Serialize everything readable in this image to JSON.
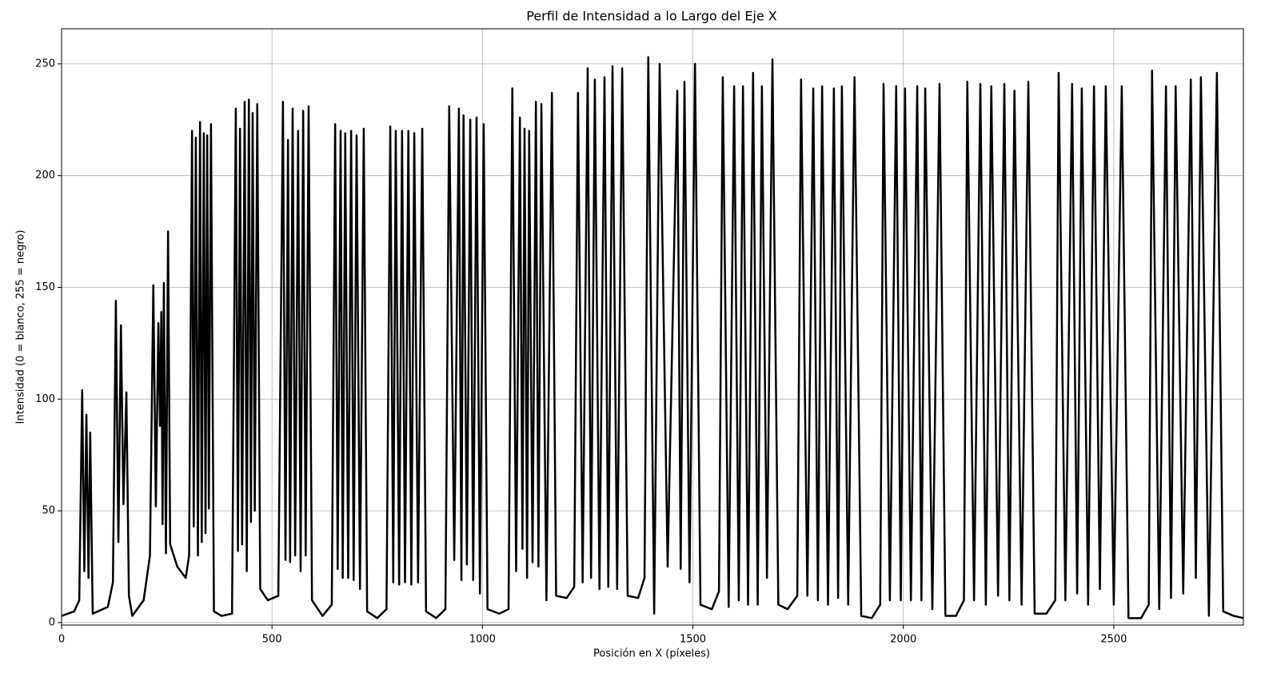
{
  "chart_data": {
    "type": "line",
    "title": "Perfil de Intensidad a lo Largo del Eje X",
    "x_label": "Posición en X (píxeles)",
    "y_label": "Intensidad (0 = blanco, 255 = negro)",
    "color": "#000000",
    "grid": true,
    "xlim": [
      0,
      2808
    ],
    "ylim": [
      -1.1,
      265.7
    ],
    "xticks": [
      0,
      500,
      1000,
      1500,
      2000,
      2500
    ],
    "yticks": [
      0,
      50,
      100,
      150,
      200,
      250
    ],
    "x": [
      0,
      30,
      42,
      49,
      54,
      59,
      64,
      68,
      74,
      110,
      122,
      129,
      135,
      141,
      147,
      154,
      160,
      168,
      195,
      210,
      218,
      224,
      230,
      234,
      237,
      240,
      243,
      248,
      253,
      258,
      275,
      295,
      303,
      310,
      314,
      319,
      324,
      329,
      333,
      338,
      342,
      346,
      350,
      355,
      362,
      380,
      405,
      414,
      419,
      424,
      429,
      435,
      440,
      445,
      450,
      454,
      459,
      465,
      472,
      490,
      515,
      526,
      532,
      538,
      543,
      549,
      555,
      562,
      568,
      574,
      580,
      587,
      595,
      620,
      642,
      650,
      656,
      663,
      668,
      674,
      681,
      688,
      694,
      701,
      709,
      718,
      726,
      750,
      772,
      781,
      788,
      794,
      802,
      809,
      816,
      824,
      831,
      838,
      847,
      857,
      866,
      890,
      912,
      921,
      933,
      944,
      950,
      955,
      963,
      971,
      978,
      986,
      994,
      1003,
      1012,
      1040,
      1062,
      1071,
      1080,
      1089,
      1095,
      1100,
      1106,
      1111,
      1119,
      1127,
      1133,
      1140,
      1152,
      1165,
      1175,
      1200,
      1218,
      1227,
      1238,
      1250,
      1258,
      1267,
      1278,
      1290,
      1299,
      1309,
      1320,
      1332,
      1345,
      1370,
      1385,
      1394,
      1408,
      1421,
      1440,
      1463,
      1471,
      1480,
      1492,
      1505,
      1518,
      1545,
      1562,
      1571,
      1585,
      1598,
      1609,
      1619,
      1631,
      1643,
      1654,
      1664,
      1676,
      1689,
      1703,
      1725,
      1748,
      1757,
      1772,
      1786,
      1797,
      1807,
      1821,
      1835,
      1845,
      1854,
      1869,
      1884,
      1900,
      1925,
      1945,
      1953,
      1968,
      1983,
      1994,
      2004,
      2018,
      2033,
      2043,
      2052,
      2069,
      2086,
      2100,
      2125,
      2144,
      2152,
      2168,
      2183,
      2196,
      2209,
      2225,
      2240,
      2252,
      2264,
      2281,
      2297,
      2312,
      2340,
      2361,
      2369,
      2385,
      2401,
      2413,
      2424,
      2439,
      2453,
      2467,
      2481,
      2500,
      2519,
      2535,
      2565,
      2583,
      2591,
      2608,
      2624,
      2636,
      2647,
      2665,
      2683,
      2695,
      2707,
      2726,
      2745,
      2760,
      2785,
      2808
    ],
    "values": [
      3,
      5,
      10,
      104,
      23,
      93,
      20,
      85,
      4,
      7,
      18,
      144,
      36,
      133,
      53,
      103,
      12,
      3,
      10,
      30,
      151,
      52,
      134,
      88,
      139,
      44,
      152,
      31,
      175,
      35,
      25,
      20,
      30,
      220,
      43,
      217,
      30,
      224,
      36,
      219,
      40,
      218,
      51,
      223,
      5,
      3,
      4,
      230,
      32,
      221,
      35,
      233,
      23,
      234,
      45,
      228,
      50,
      232,
      15,
      10,
      12,
      233,
      28,
      216,
      27,
      230,
      30,
      220,
      23,
      229,
      30,
      231,
      10,
      3,
      8,
      223,
      24,
      220,
      20,
      219,
      20,
      220,
      19,
      218,
      15,
      221,
      5,
      2,
      6,
      222,
      18,
      220,
      17,
      220,
      18,
      220,
      17,
      219,
      18,
      221,
      5,
      2,
      6,
      231,
      28,
      230,
      19,
      227,
      26,
      225,
      19,
      226,
      13,
      223,
      6,
      4,
      6,
      239,
      23,
      226,
      33,
      221,
      20,
      220,
      27,
      233,
      25,
      232,
      10,
      237,
      12,
      11,
      16,
      237,
      18,
      248,
      20,
      243,
      15,
      244,
      16,
      249,
      15,
      248,
      12,
      11,
      20,
      253,
      4,
      250,
      25,
      238,
      24,
      242,
      18,
      250,
      8,
      6,
      14,
      244,
      7,
      240,
      10,
      240,
      8,
      246,
      8,
      240,
      20,
      252,
      8,
      6,
      12,
      243,
      12,
      239,
      10,
      240,
      8,
      239,
      11,
      240,
      8,
      244,
      3,
      2,
      8,
      241,
      10,
      240,
      10,
      239,
      10,
      240,
      10,
      239,
      6,
      241,
      3,
      3,
      10,
      242,
      10,
      241,
      8,
      240,
      12,
      241,
      10,
      238,
      8,
      242,
      4,
      4,
      10,
      246,
      10,
      241,
      13,
      239,
      8,
      240,
      15,
      240,
      8,
      240,
      2,
      2,
      8,
      247,
      6,
      240,
      11,
      240,
      13,
      243,
      20,
      244,
      3,
      246,
      5,
      3,
      2
    ]
  }
}
